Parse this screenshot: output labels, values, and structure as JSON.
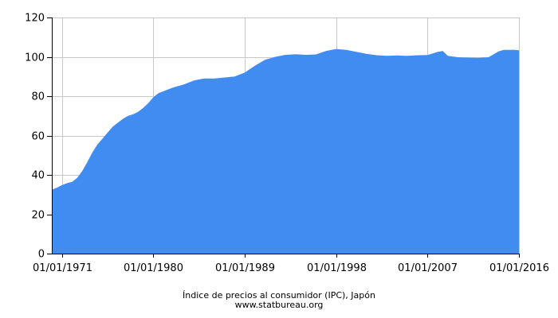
{
  "chart_data": {
    "type": "area",
    "title": "",
    "xlabel": "",
    "ylabel": "",
    "x_start": "01/01/1970",
    "x_end": "01/01/2016",
    "ylim": [
      0,
      120
    ],
    "y_ticks": [
      "0",
      "20",
      "40",
      "60",
      "80",
      "100",
      "120"
    ],
    "x_ticks": [
      {
        "label": "01/01/1971",
        "date": "1971-01-01"
      },
      {
        "label": "01/01/1980",
        "date": "1980-01-01"
      },
      {
        "label": "01/01/1989",
        "date": "1989-01-01"
      },
      {
        "label": "01/01/1998",
        "date": "1998-01-01"
      },
      {
        "label": "01/01/2007",
        "date": "2007-01-01"
      },
      {
        "label": "01/01/2016",
        "date": "2016-01-01"
      }
    ],
    "grid": true,
    "color": "#418cf0",
    "series": [
      {
        "x": [
          "1970-01-01",
          "1970-07-01",
          "1971-01-01",
          "1971-07-01",
          "1972-01-01",
          "1972-07-01",
          "1973-01-01",
          "1973-07-01",
          "1974-01-01",
          "1974-07-01",
          "1975-01-01",
          "1975-07-01",
          "1976-01-01",
          "1976-07-01",
          "1977-01-01",
          "1977-07-01",
          "1978-01-01",
          "1978-07-01",
          "1979-01-01",
          "1979-07-01",
          "1980-01-01",
          "1980-07-01",
          "1981-01-01",
          "1981-07-01",
          "1982-01-01",
          "1983-01-01",
          "1984-01-01",
          "1985-01-01",
          "1986-01-01",
          "1987-01-01",
          "1988-01-01",
          "1989-01-01",
          "1990-01-01",
          "1991-01-01",
          "1992-01-01",
          "1993-01-01",
          "1994-01-01",
          "1995-01-01",
          "1996-01-01",
          "1997-01-01",
          "1998-01-01",
          "1999-01-01",
          "2000-01-01",
          "2001-01-01",
          "2002-01-01",
          "2003-01-01",
          "2004-01-01",
          "2005-01-01",
          "2006-01-01",
          "2007-01-01",
          "2008-01-01",
          "2008-07-01",
          "2009-01-01",
          "2010-01-01",
          "2011-01-01",
          "2012-01-01",
          "2013-01-01",
          "2014-01-01",
          "2014-07-01",
          "2015-01-01",
          "2015-07-01",
          "2016-01-01"
        ],
        "y": [
          32.5,
          33.5,
          34.8,
          35.8,
          36.5,
          38.5,
          42.0,
          46.5,
          51.5,
          55.5,
          58.5,
          61.5,
          64.5,
          66.5,
          68.5,
          70.0,
          70.8,
          72.0,
          74.0,
          76.5,
          79.5,
          81.5,
          82.5,
          83.5,
          84.5,
          86.0,
          88.0,
          89.0,
          89.0,
          89.5,
          90.0,
          92.0,
          95.5,
          98.5,
          100.0,
          101.0,
          101.3,
          101.0,
          101.2,
          103.0,
          104.0,
          103.5,
          102.5,
          101.5,
          100.8,
          100.5,
          100.7,
          100.5,
          100.8,
          100.9,
          102.5,
          103.0,
          100.5,
          99.8,
          99.6,
          99.5,
          99.8,
          102.8,
          103.5,
          103.5,
          103.6,
          103.3
        ]
      }
    ]
  },
  "footer": {
    "title": "Índice de precios al consumidor (IPC), Japón",
    "source": "www.statbureau.org"
  }
}
